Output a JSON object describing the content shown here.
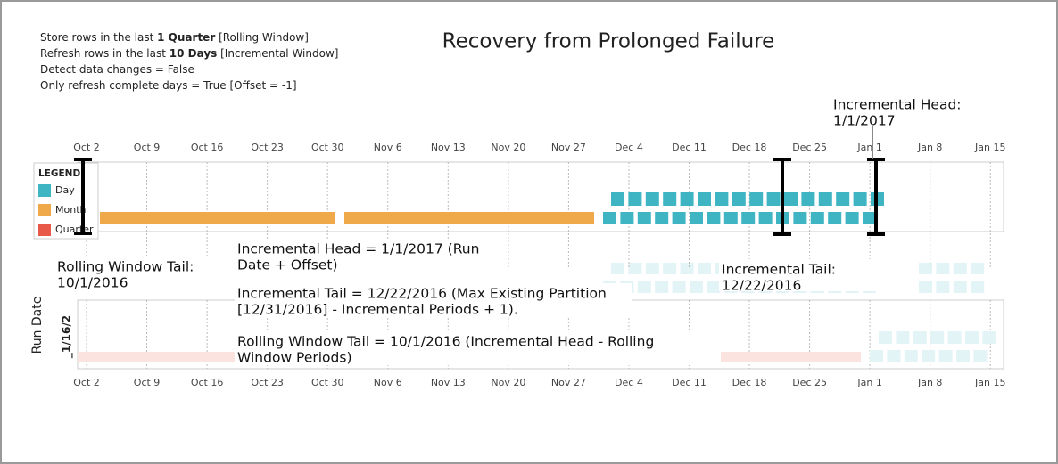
{
  "notes": [
    {
      "before": "Store rows in the last ",
      "bold": "1 Quarter",
      "after": " [Rolling Window]"
    },
    {
      "before": "Refresh rows in the last ",
      "bold": "10 Days",
      "after": " [Incremental Window]"
    },
    {
      "before": "Detect data changes = False"
    },
    {
      "before": "Only refresh complete days = True [Offset = -1]"
    }
  ],
  "title": "Recovery from Prolonged Failure",
  "axis_labels": [
    "Oct 2",
    "Oct 9",
    "Oct 16",
    "Oct 23",
    "Oct 30",
    "Nov 6",
    "Nov 13",
    "Nov 20",
    "Nov 27",
    "Dec 4",
    "Dec 11",
    "Dec 18",
    "Dec 25",
    "Jan 1",
    "Jan 8",
    "Jan 15"
  ],
  "legend": {
    "title": "LEGEND",
    "items": [
      "Day",
      "Month",
      "Quarter"
    ]
  },
  "annotations": {
    "incremental_head": [
      "Incremental Head:",
      "1/1/2017"
    ],
    "rolling_tail": [
      "Rolling Window Tail:",
      "10/1/2016"
    ],
    "incremental_tail": [
      "Incremental Tail:",
      "12/22/2016"
    ],
    "head_formula": [
      "Incremental Head = 1/1/2017 (Run",
      "Date + Offset)"
    ],
    "tail_formula": [
      "Incremental Tail = 12/22/2016 (Max Existing Partition",
      "[12/31/2016] - Incremental Periods + 1)."
    ],
    "rolling_formula": [
      "Rolling Window Tail = 10/1/2016 (Incremental Head - Rolling",
      "Window Periods)"
    ]
  },
  "y_axis_title": "Run Date",
  "run_date_label": "_1/16/2"
}
